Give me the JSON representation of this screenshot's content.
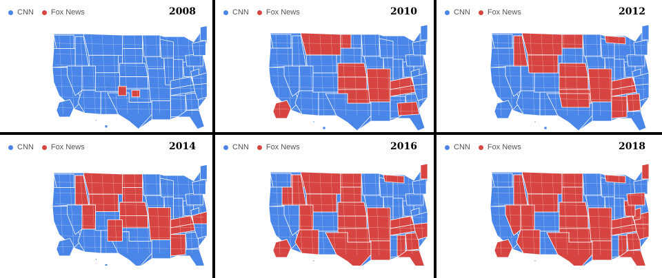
{
  "legend": {
    "cnn_label": "CNN",
    "fox_label": "Fox News",
    "cnn_color": "#4a86e8",
    "fox_color": "#d64541"
  },
  "panels": [
    {
      "year": "2008",
      "fox_regions": [
        "tx-center",
        "ok-south"
      ]
    },
    {
      "year": "2010",
      "fox_regions": [
        "mt",
        "nd-west",
        "ne",
        "ks",
        "ok",
        "mo-arkansas",
        "tn",
        "ky",
        "ga-fl-panhandle",
        "ak"
      ]
    },
    {
      "year": "2012",
      "fox_regions": [
        "mt",
        "wy",
        "id",
        "nd",
        "ne",
        "ks",
        "ok",
        "tx-north",
        "mo-arkansas",
        "tn",
        "ky",
        "ms-al",
        "ga",
        "mi-up"
      ]
    },
    {
      "year": "2014",
      "fox_regions": [
        "mt",
        "wy",
        "id",
        "ut",
        "nd",
        "sd",
        "ne",
        "ks",
        "tx-west",
        "mo-arkansas",
        "tn",
        "ky",
        "ms-al",
        "va"
      ]
    },
    {
      "year": "2016",
      "fox_regions": [
        "wa-east",
        "or-east",
        "id",
        "mt",
        "wy",
        "ut",
        "az",
        "nd",
        "sd",
        "ne",
        "ks",
        "ok",
        "tx",
        "mo-arkansas",
        "la-ms",
        "al",
        "tn",
        "ky",
        "ga",
        "fl",
        "carolinas",
        "mi-up",
        "ak",
        "me"
      ]
    },
    {
      "year": "2018",
      "fox_regions": [
        "nv",
        "id",
        "mt",
        "wy",
        "ut",
        "az",
        "nd",
        "sd",
        "ne",
        "ks",
        "ok",
        "tx",
        "mo-arkansas",
        "la-ms",
        "al",
        "tn",
        "ky",
        "ga",
        "fl",
        "carolinas",
        "va",
        "wv",
        "oh",
        "pa",
        "mi-up",
        "ak",
        "me"
      ]
    }
  ]
}
